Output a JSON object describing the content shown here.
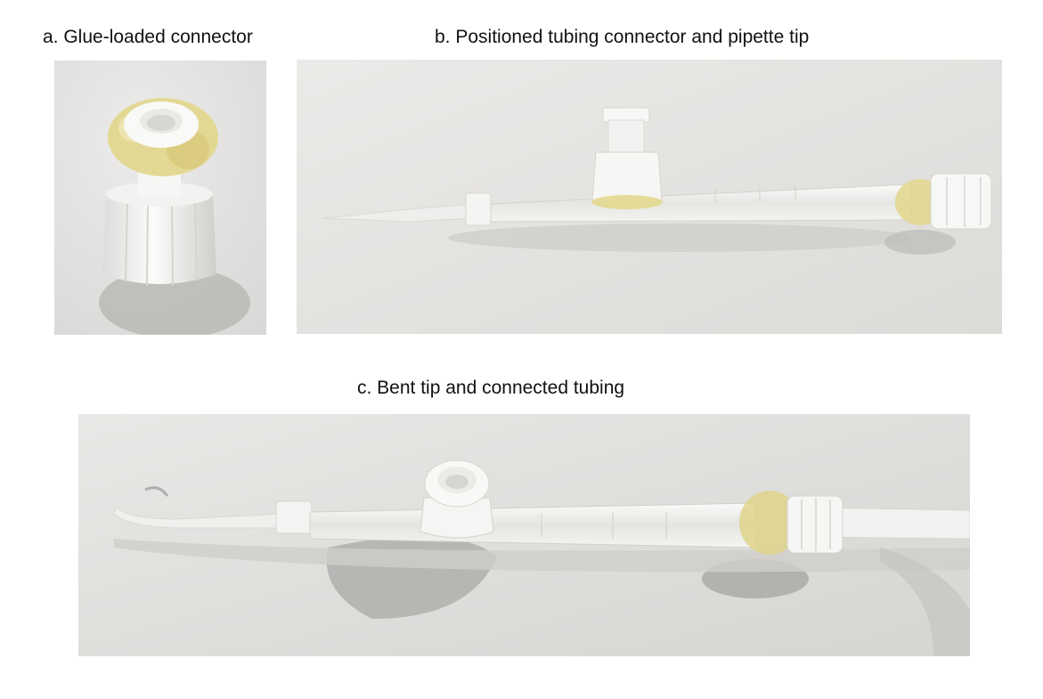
{
  "figure": {
    "panels": [
      {
        "caption": "a. Glue-loaded connector",
        "photo_subject": "glue-loaded connector"
      },
      {
        "caption": "b. Positioned tubing connector and pipette tip",
        "photo_subject": "tubing connector positioned on pipette tip"
      },
      {
        "caption": "c. Bent tip and connected tubing",
        "photo_subject": "bent pipette tip with connected tubing"
      }
    ]
  },
  "colors": {
    "background": "#ffffff",
    "paper": "#e4e3e1",
    "plastic_white": "#f4f4f2",
    "glue_yellow": "#e3d98f",
    "tube_clear": "#f1f1ef",
    "shadow": "#b9b8b5"
  }
}
